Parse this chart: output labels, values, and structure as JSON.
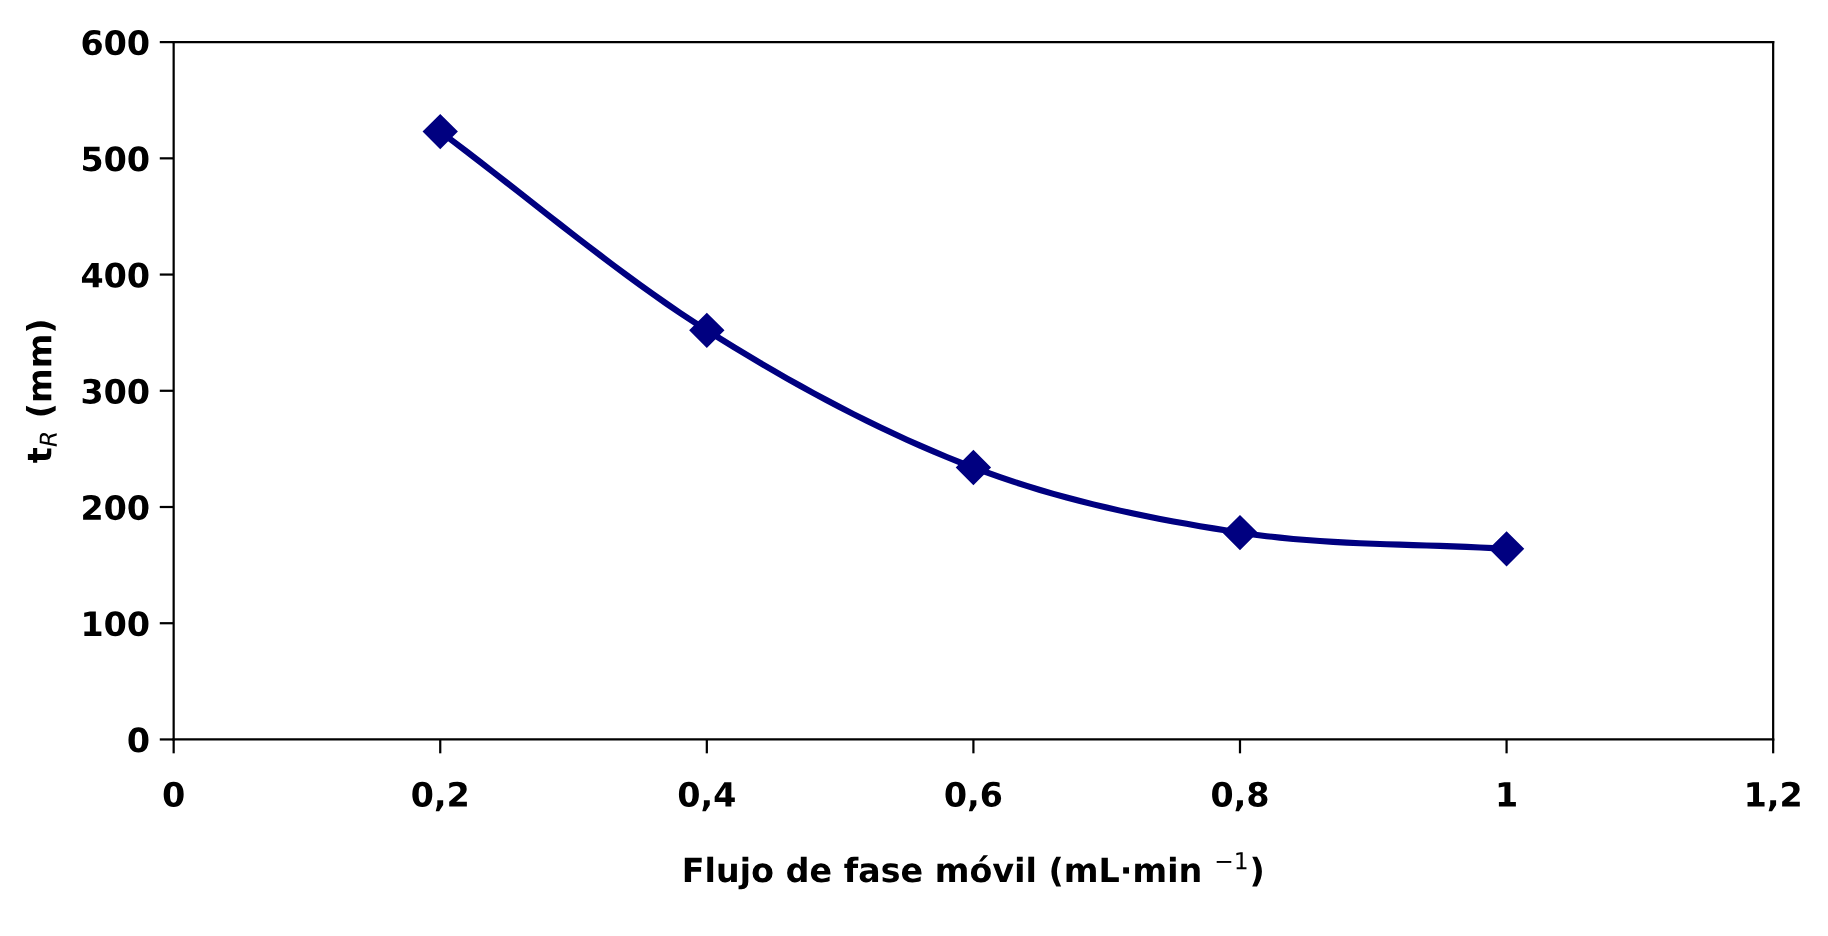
{
  "chart_data": {
    "type": "line",
    "xlabel": "Flujo de fase móvil (mL·min $^{−1}$)",
    "ylabel": "t$_{R}$ (mm)",
    "x": [
      0.2,
      0.4,
      0.6,
      0.8,
      1
    ],
    "series": [
      {
        "color": "#000080",
        "values": [
          523,
          352,
          234,
          178,
          164
        ]
      }
    ],
    "xlim": [
      0,
      1.2
    ],
    "xticks": [
      0,
      {
        "value": 0.2,
        "label": "0,2"
      },
      {
        "value": 0.4,
        "label": "0,4"
      },
      {
        "value": 0.6,
        "label": "0,6"
      },
      {
        "value": 0.8,
        "label": "0,8"
      },
      1,
      {
        "value": 1.2,
        "label": "1,2"
      }
    ],
    "ylim": [
      0,
      600
    ],
    "yticks": [
      0,
      100,
      200,
      300,
      400,
      500,
      600
    ],
    "grid": false,
    "legend": false,
    "marker": "diamond",
    "line_style": "solid"
  }
}
